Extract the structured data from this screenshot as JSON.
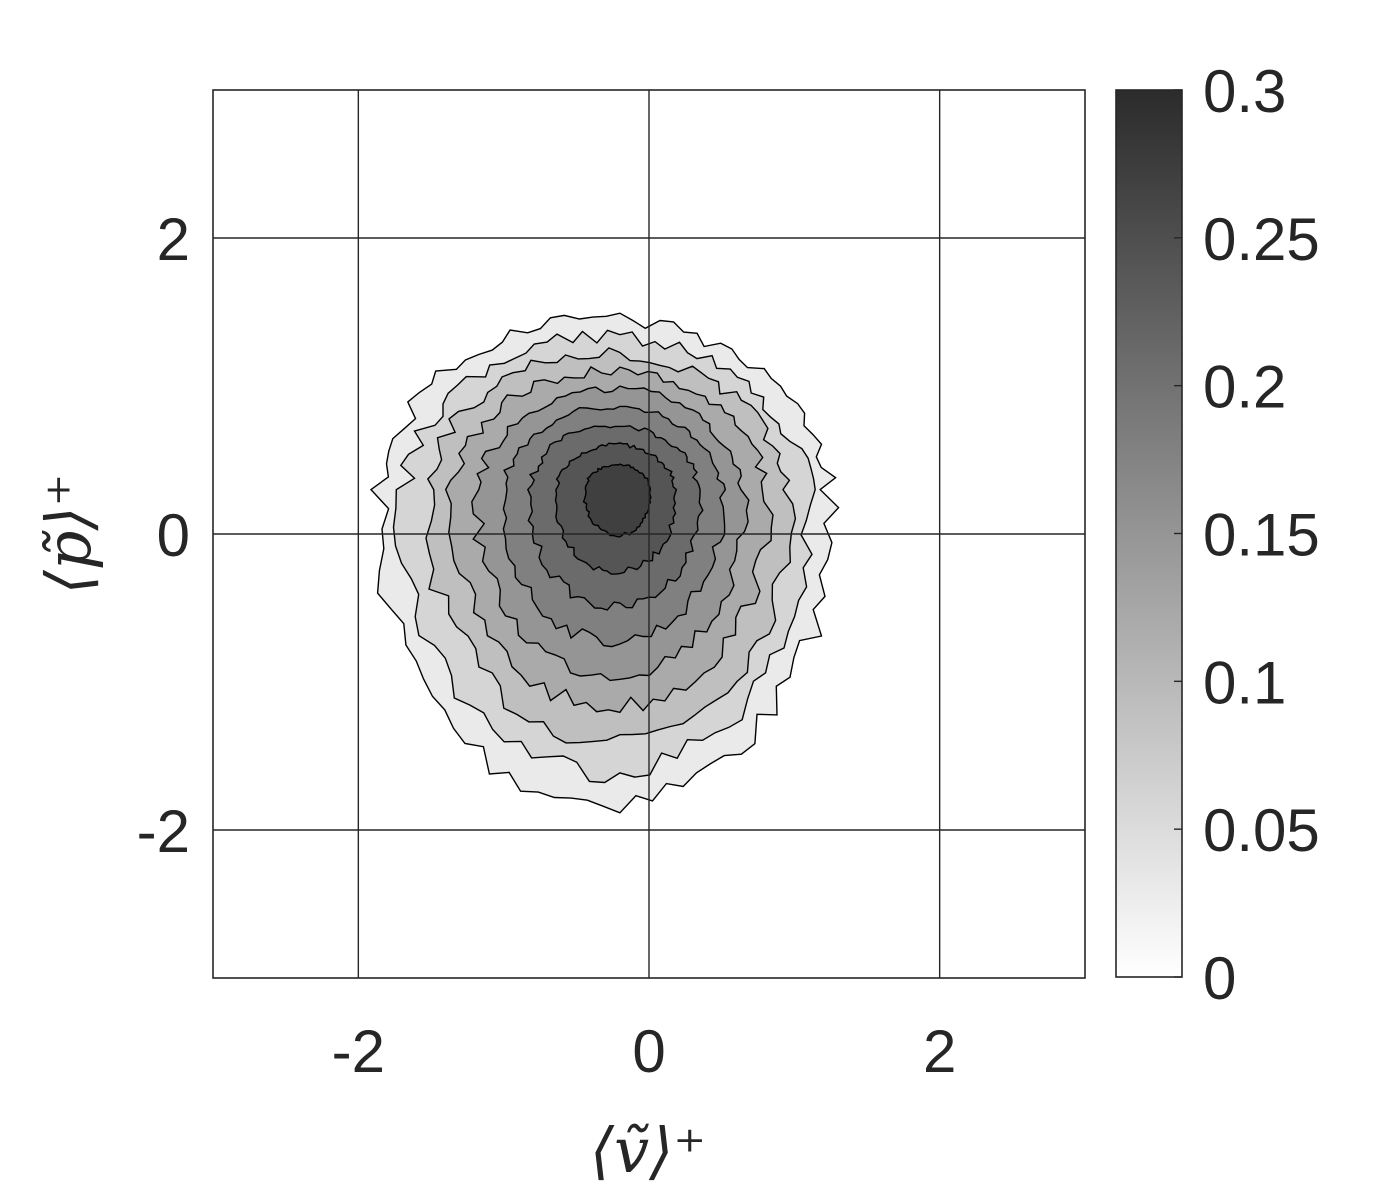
{
  "chart_data": {
    "type": "heatmap",
    "subtype": "filled-contour",
    "title": "",
    "xlabel": "⟨ṽ⟩⁺",
    "ylabel": "⟨p̃⟩⁺",
    "xlim": [
      -3,
      3
    ],
    "ylim": [
      -3,
      3
    ],
    "x_ticks": [
      -2,
      0,
      2
    ],
    "y_ticks": [
      -2,
      0,
      2
    ],
    "x_tick_labels": [
      "-2",
      "0",
      "2"
    ],
    "y_tick_labels": [
      "-2",
      "0",
      "2"
    ],
    "grid": true,
    "colormap": "gray (white = 0 to dark gray = 0.3)",
    "colorbar": {
      "location": "right",
      "min": 0,
      "max": 0.3,
      "ticks": [
        0,
        0.05,
        0.1,
        0.15,
        0.2,
        0.25,
        0.3
      ],
      "tick_labels": [
        "0",
        "0.05",
        "0.1",
        "0.15",
        "0.2",
        "0.25",
        "0.3"
      ]
    },
    "contour_levels": [
      0.03,
      0.06,
      0.09,
      0.12,
      0.15,
      0.18,
      0.21,
      0.24,
      0.27
    ],
    "distribution": {
      "peak_location": [
        -0.2,
        0.3
      ],
      "peak_value": 0.27,
      "support_x": [
        -1.9,
        1.5
      ],
      "support_y": [
        -1.8,
        1.7
      ]
    },
    "colors": {
      "colorbar_top": "#2b2b2b",
      "colorbar_bottom": "#ffffff",
      "grid": "#262626",
      "contour_line": "#000000"
    }
  }
}
